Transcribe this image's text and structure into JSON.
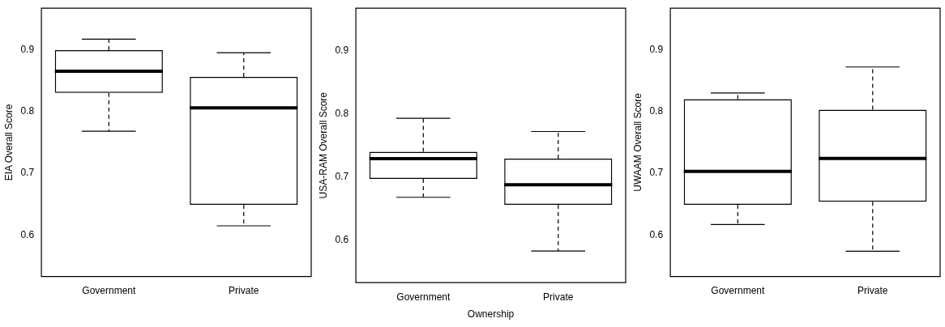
{
  "chart_data": [
    {
      "type": "box",
      "categories": [
        "Government",
        "Private"
      ],
      "ylabel": "EIA Overall Score",
      "ylim": [
        0.533,
        0.967
      ],
      "yticks": [
        0.6,
        0.7,
        0.8,
        0.9
      ],
      "boxes": [
        {
          "low": 0.768,
          "q1": 0.83,
          "median": 0.865,
          "q3": 0.899,
          "high": 0.917
        },
        {
          "low": 0.615,
          "q1": 0.649,
          "median": 0.806,
          "q3": 0.856,
          "high": 0.895
        }
      ]
    },
    {
      "type": "box",
      "categories": [
        "Government",
        "Private"
      ],
      "xlabel": "Ownership",
      "ylabel": "USA-RAM Overall Score",
      "ylim": [
        0.533,
        0.967
      ],
      "yticks": [
        0.6,
        0.7,
        0.8,
        0.9
      ],
      "boxes": [
        {
          "low": 0.668,
          "q1": 0.697,
          "median": 0.729,
          "q3": 0.74,
          "high": 0.793
        },
        {
          "low": 0.583,
          "q1": 0.656,
          "median": 0.688,
          "q3": 0.729,
          "high": 0.772
        }
      ]
    },
    {
      "type": "box",
      "categories": [
        "Government",
        "Private"
      ],
      "ylabel": "UWAAM Overall Score",
      "ylim": [
        0.533,
        0.967
      ],
      "yticks": [
        0.6,
        0.7,
        0.8,
        0.9
      ],
      "boxes": [
        {
          "low": 0.617,
          "q1": 0.649,
          "median": 0.703,
          "q3": 0.82,
          "high": 0.83
        },
        {
          "low": 0.574,
          "q1": 0.654,
          "median": 0.724,
          "q3": 0.803,
          "high": 0.872
        }
      ]
    }
  ]
}
